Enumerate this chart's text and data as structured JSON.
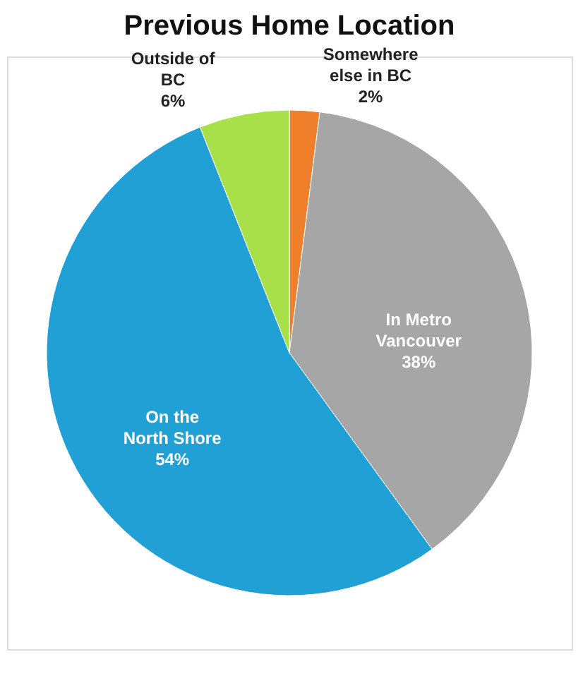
{
  "chart_data": {
    "type": "pie",
    "title": "Previous Home Location",
    "categories": [
      "Somewhere else in BC",
      "In Metro Vancouver",
      "On the North Shore",
      "Outside of BC"
    ],
    "values": [
      2,
      38,
      54,
      6
    ],
    "value_labels": [
      "2%",
      "38%",
      "54%",
      "6%"
    ],
    "colors": [
      "#f07f2c",
      "#a6a6a6",
      "#21a0d6",
      "#a8e04a"
    ],
    "legend": false
  }
}
